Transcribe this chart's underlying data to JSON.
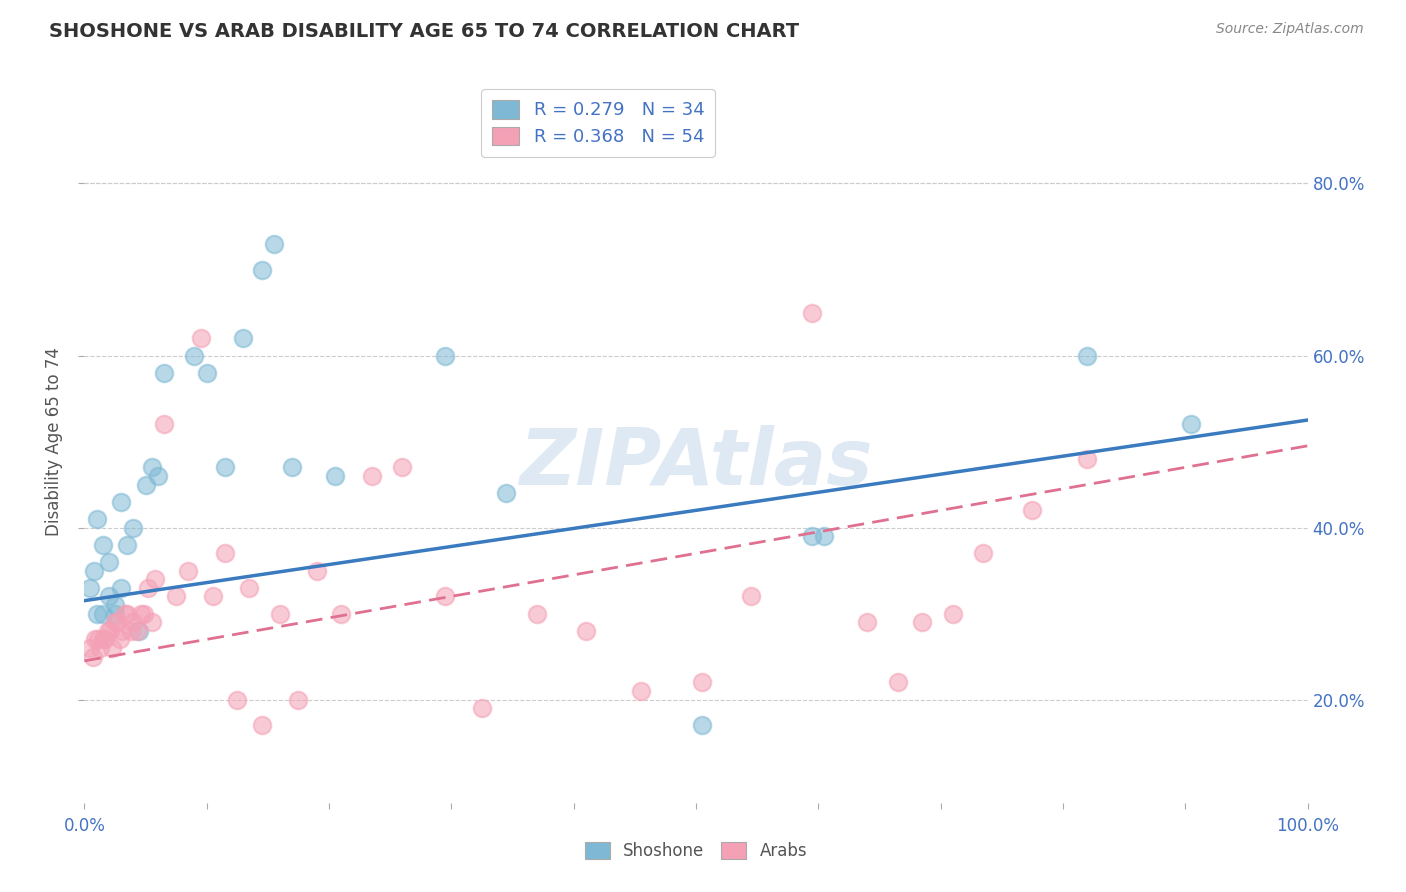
{
  "title": "SHOSHONE VS ARAB DISABILITY AGE 65 TO 74 CORRELATION CHART",
  "xlabel": "",
  "ylabel": "Disability Age 65 to 74",
  "source_text": "Source: ZipAtlas.com",
  "shoshone_R": 0.279,
  "shoshone_N": 34,
  "arab_R": 0.368,
  "arab_N": 54,
  "watermark": "ZIPAtlas",
  "shoshone_color": "#7eb8d4",
  "arab_color": "#f4a0b5",
  "shoshone_line_color": "#3a7abf",
  "arab_line_color": "#e07090",
  "background_color": "#ffffff",
  "grid_color": "#cccccc",
  "title_color": "#333333",
  "axis_label_color": "#4472c4",
  "legend_text_color": "#4472c4",
  "xlim": [
    0,
    1.0
  ],
  "ylim": [
    0.08,
    0.92
  ],
  "shoshone_line_start_y": 0.315,
  "shoshone_line_end_y": 0.525,
  "arab_line_start_y": 0.245,
  "arab_line_end_y": 0.495,
  "shoshone_x": [
    0.005,
    0.008,
    0.01,
    0.01,
    0.015,
    0.015,
    0.02,
    0.02,
    0.025,
    0.025,
    0.03,
    0.03,
    0.035,
    0.04,
    0.045,
    0.05,
    0.055,
    0.06,
    0.065,
    0.09,
    0.1,
    0.115,
    0.13,
    0.145,
    0.155,
    0.17,
    0.205,
    0.295,
    0.345,
    0.505,
    0.595,
    0.605,
    0.82,
    0.905
  ],
  "shoshone_y": [
    0.33,
    0.35,
    0.3,
    0.41,
    0.3,
    0.38,
    0.32,
    0.36,
    0.3,
    0.31,
    0.33,
    0.43,
    0.38,
    0.4,
    0.28,
    0.45,
    0.47,
    0.46,
    0.58,
    0.6,
    0.58,
    0.47,
    0.62,
    0.7,
    0.73,
    0.47,
    0.46,
    0.6,
    0.44,
    0.17,
    0.39,
    0.39,
    0.6,
    0.52
  ],
  "arab_x": [
    0.005,
    0.007,
    0.009,
    0.011,
    0.013,
    0.015,
    0.017,
    0.019,
    0.021,
    0.023,
    0.025,
    0.027,
    0.029,
    0.031,
    0.033,
    0.035,
    0.038,
    0.04,
    0.043,
    0.046,
    0.049,
    0.052,
    0.055,
    0.058,
    0.065,
    0.075,
    0.085,
    0.095,
    0.105,
    0.115,
    0.125,
    0.135,
    0.145,
    0.16,
    0.175,
    0.19,
    0.21,
    0.235,
    0.26,
    0.295,
    0.325,
    0.37,
    0.41,
    0.455,
    0.505,
    0.545,
    0.595,
    0.64,
    0.665,
    0.685,
    0.71,
    0.735,
    0.775,
    0.82
  ],
  "arab_y": [
    0.26,
    0.25,
    0.27,
    0.27,
    0.26,
    0.27,
    0.27,
    0.28,
    0.28,
    0.26,
    0.29,
    0.29,
    0.27,
    0.28,
    0.3,
    0.3,
    0.28,
    0.29,
    0.28,
    0.3,
    0.3,
    0.33,
    0.29,
    0.34,
    0.52,
    0.32,
    0.35,
    0.62,
    0.32,
    0.37,
    0.2,
    0.33,
    0.17,
    0.3,
    0.2,
    0.35,
    0.3,
    0.46,
    0.47,
    0.32,
    0.19,
    0.3,
    0.28,
    0.21,
    0.22,
    0.32,
    0.65,
    0.29,
    0.22,
    0.29,
    0.3,
    0.37,
    0.42,
    0.48
  ]
}
